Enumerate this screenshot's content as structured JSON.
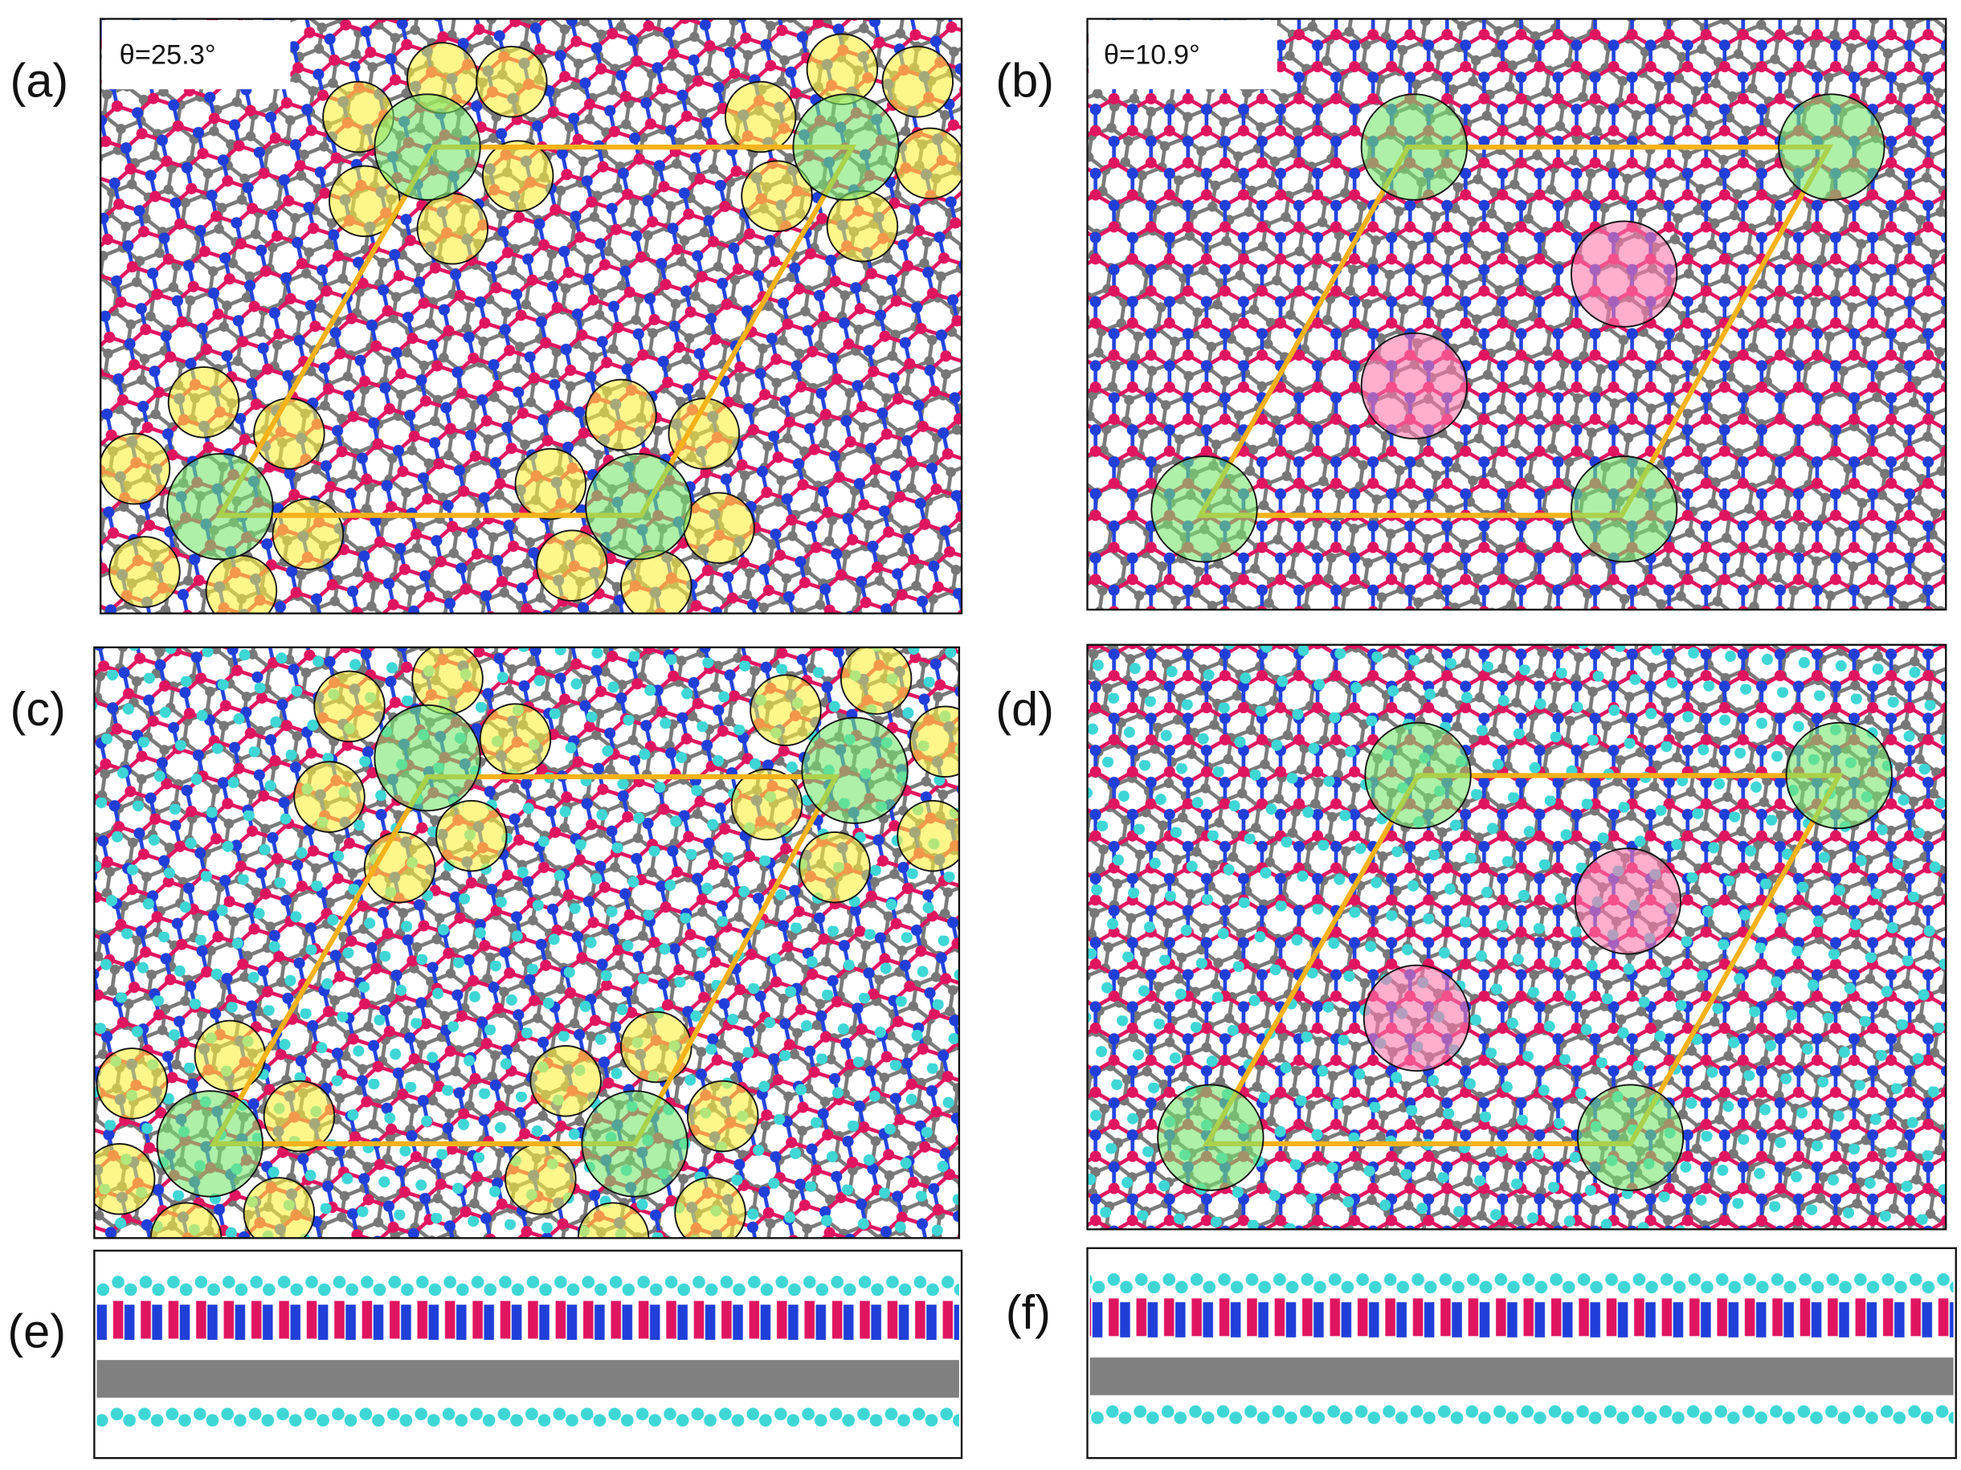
{
  "panels": [
    {
      "label": "(a)",
      "angle": "θ=25.3°"
    },
    {
      "label": "(b)",
      "angle": "θ=10.9°"
    },
    {
      "label": "(c)"
    },
    {
      "label": "(d)"
    },
    {
      "label": "(e)"
    },
    {
      "label": "(f)"
    }
  ]
}
